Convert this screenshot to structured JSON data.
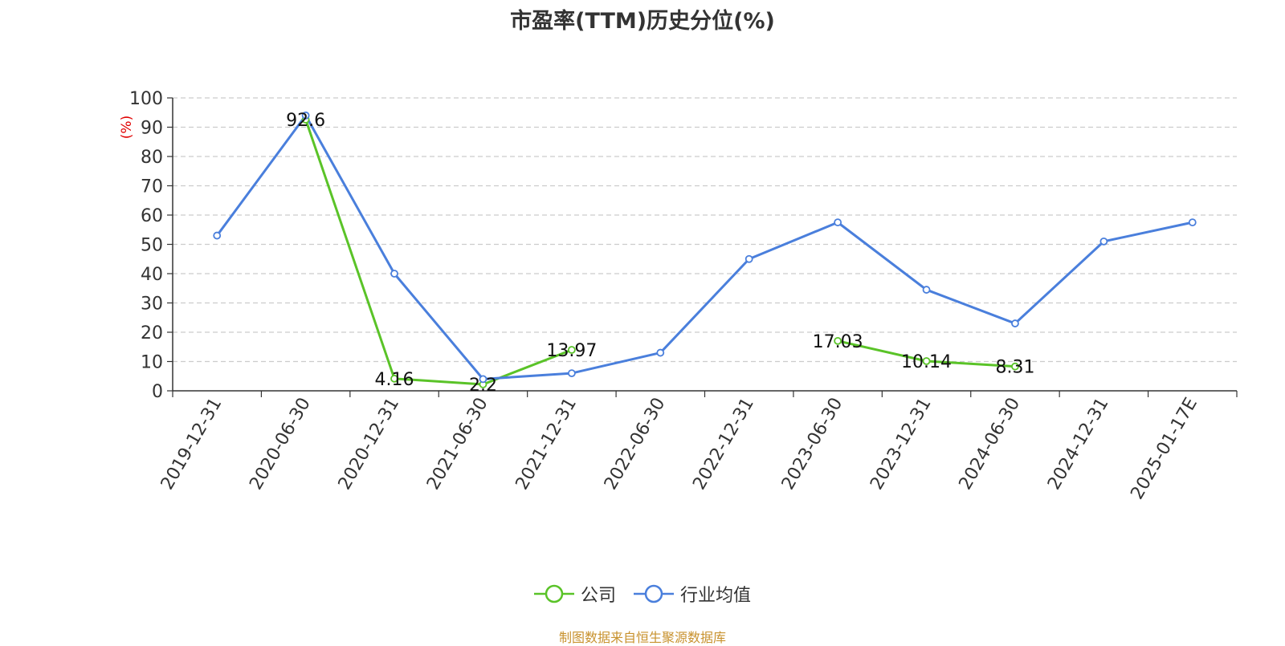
{
  "title": "市盈率(TTM)历史分位(%)",
  "source": "制图数据来自恒生聚源数据库",
  "chart_data": {
    "type": "line",
    "title": "市盈率(TTM)历史分位(%)",
    "ylabel": "(%)",
    "ylim": [
      0,
      100
    ],
    "yticks": [
      0,
      10,
      20,
      30,
      40,
      50,
      60,
      70,
      80,
      90,
      100
    ],
    "grid": true,
    "legend_placement": "bottom-center",
    "categories": [
      "2019-12-31",
      "2020-06-30",
      "2020-12-31",
      "2021-06-30",
      "2021-12-31",
      "2022-06-30",
      "2022-12-31",
      "2023-06-30",
      "2023-12-31",
      "2024-06-30",
      "2024-12-31",
      "2025-01-17E"
    ],
    "series": [
      {
        "name": "公司",
        "color": "#5ac328",
        "values": [
          null,
          92.6,
          4.16,
          2.2,
          13.97,
          null,
          null,
          17.03,
          10.14,
          8.31,
          null,
          null
        ],
        "labels": [
          "",
          "92.6",
          "4.16",
          "2.2",
          "13.97",
          "",
          "",
          "17.03",
          "10.14",
          "8.31",
          "",
          ""
        ]
      },
      {
        "name": "行业均值",
        "color": "#4a7fdc",
        "values": [
          53,
          94,
          40,
          4,
          6,
          13,
          45,
          57.5,
          34.5,
          23,
          51,
          57.5
        ]
      }
    ]
  }
}
